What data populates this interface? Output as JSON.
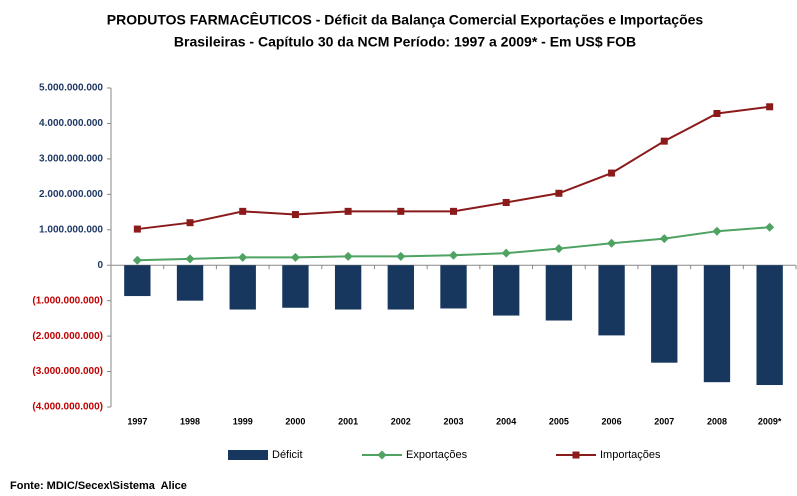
{
  "chart_data": {
    "type": "combo",
    "title": [
      "PRODUTOS FARMACÊUTICOS - Déficit da Balança Comercial Exportações e Importações",
      "Brasileiras - Capítulo 30 da NCM Período: 1997 a 2009* - Em US$ FOB"
    ],
    "categories": [
      "1997",
      "1998",
      "1999",
      "2000",
      "2001",
      "2002",
      "2003",
      "2004",
      "2005",
      "2006",
      "2007",
      "2008",
      "2009*"
    ],
    "series": [
      {
        "name": "Déficit",
        "type": "bar",
        "color": "#17375e",
        "values": [
          -870000000,
          -1000000000,
          -1250000000,
          -1200000000,
          -1250000000,
          -1250000000,
          -1220000000,
          -1420000000,
          -1560000000,
          -1980000000,
          -2750000000,
          -3300000000,
          -3380000000
        ]
      },
      {
        "name": "Exportações",
        "type": "line",
        "marker": "diamond",
        "color": "#4ea262",
        "values": [
          140000000,
          180000000,
          220000000,
          220000000,
          250000000,
          250000000,
          280000000,
          340000000,
          470000000,
          620000000,
          750000000,
          960000000,
          1070000000
        ]
      },
      {
        "name": "Importações",
        "type": "line",
        "marker": "square",
        "color": "#8b1a1a",
        "values": [
          1020000000,
          1200000000,
          1520000000,
          1430000000,
          1520000000,
          1520000000,
          1520000000,
          1770000000,
          2030000000,
          2600000000,
          3500000000,
          4280000000,
          4470000000
        ]
      }
    ],
    "ylim": [
      -4000000000,
      5000000000
    ],
    "yticks": [
      {
        "value": 5000000000,
        "label": "5.000.000.000"
      },
      {
        "value": 4000000000,
        "label": "4.000.000.000"
      },
      {
        "value": 3000000000,
        "label": "3.000.000.000"
      },
      {
        "value": 2000000000,
        "label": "2.000.000.000"
      },
      {
        "value": 1000000000,
        "label": "1.000.000.000"
      },
      0,
      {
        "value": -1000000000,
        "label": "(1.000.000.000)"
      },
      {
        "value": -2000000000,
        "label": "(2.000.000.000)"
      },
      {
        "value": -3000000000,
        "label": "(3.000.000.000)"
      },
      {
        "value": -4000000000,
        "label": "(4.000.000.000)"
      }
    ],
    "ytick_color": "#1f3864",
    "negative_ytick_color": "#c00000",
    "grid": false,
    "legend": "bottom",
    "source": "Fonte: MDIC/Secex\\Sistema  Alice"
  }
}
